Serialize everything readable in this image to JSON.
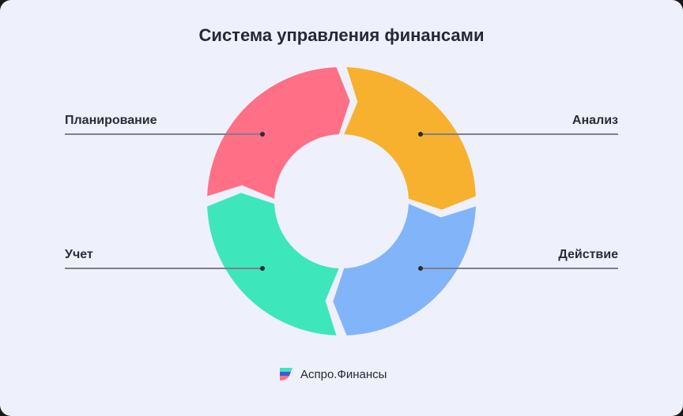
{
  "title": "Система управления финансами",
  "segments": [
    {
      "label": "Планирование",
      "color": "#ff6f86",
      "side": "left",
      "row": "top"
    },
    {
      "label": "Анализ",
      "color": "#f8b02f",
      "side": "right",
      "row": "top"
    },
    {
      "label": "Действие",
      "color": "#82b4fa",
      "side": "right",
      "row": "bottom"
    },
    {
      "label": "Учет",
      "color": "#3ee6bb",
      "side": "left",
      "row": "bottom"
    }
  ],
  "brand": {
    "name": "Аспро.Финансы",
    "logo_colors": [
      "#3ee6bb",
      "#3b5bdb",
      "#ff6f86"
    ]
  }
}
